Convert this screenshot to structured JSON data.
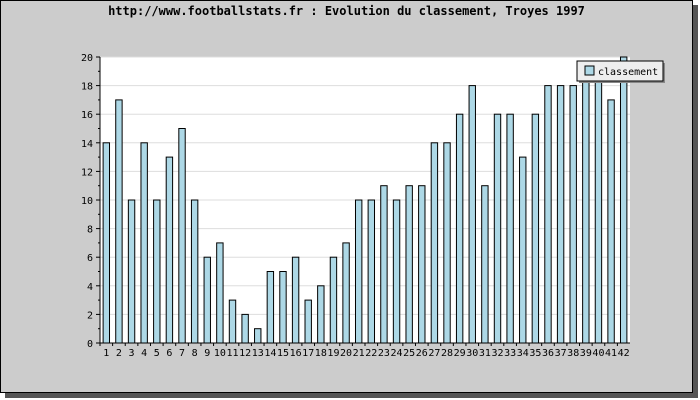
{
  "chart_data": {
    "type": "bar",
    "title": "http://www.footballstats.fr : Evolution du classement, Troyes 1997",
    "xlabel": "",
    "ylabel": "",
    "categories": [
      "1",
      "2",
      "3",
      "4",
      "5",
      "6",
      "7",
      "8",
      "9",
      "10",
      "11",
      "12",
      "13",
      "14",
      "15",
      "16",
      "17",
      "18",
      "19",
      "20",
      "21",
      "22",
      "23",
      "24",
      "25",
      "26",
      "27",
      "28",
      "29",
      "30",
      "31",
      "32",
      "33",
      "34",
      "35",
      "36",
      "37",
      "38",
      "39",
      "40",
      "41",
      "42"
    ],
    "series": [
      {
        "name": "classement",
        "values": [
          14,
          17,
          10,
          14,
          10,
          13,
          15,
          10,
          6,
          7,
          3,
          2,
          1,
          5,
          5,
          6,
          3,
          4,
          6,
          7,
          10,
          10,
          11,
          10,
          11,
          11,
          14,
          14,
          16,
          18,
          11,
          16,
          16,
          13,
          16,
          18,
          18,
          18,
          19,
          19,
          17,
          20
        ]
      }
    ],
    "ylim": [
      0,
      20
    ],
    "yticks": [
      0,
      2,
      4,
      6,
      8,
      10,
      12,
      14,
      16,
      18,
      20
    ],
    "grid": true,
    "legend": "top-right",
    "colors": {
      "bar_fill": "#add8e6",
      "bar_stroke": "#000000",
      "plot_bg": "#ffffff",
      "frame_bg": "#cccccc",
      "grid": "#dddddd"
    }
  }
}
